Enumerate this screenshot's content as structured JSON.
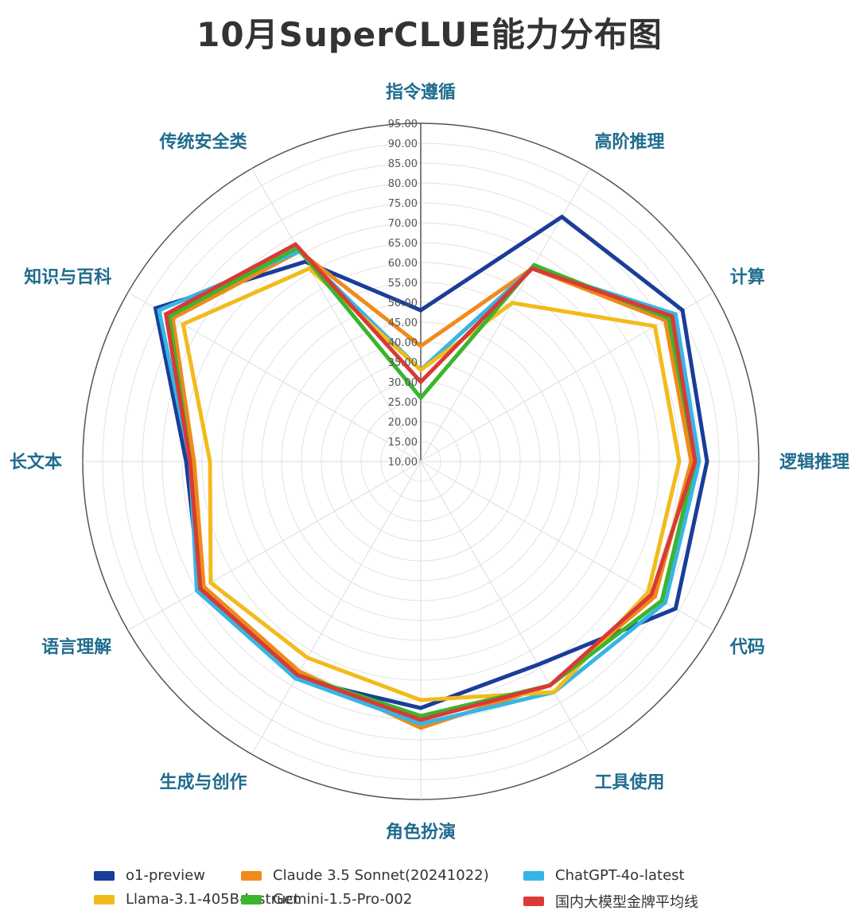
{
  "chart_data": {
    "type": "radar",
    "title": "10月SuperCLUE能力分布图",
    "axes": [
      "指令遵循",
      "高阶推理",
      "计算",
      "逻辑推理",
      "代码",
      "工具使用",
      "角色扮演",
      "生成与创作",
      "语言理解",
      "长文本",
      "知识与百科",
      "传统安全类"
    ],
    "rlim": [
      10,
      95
    ],
    "ticks": [
      "10.00",
      "15.00",
      "20.00",
      "25.00",
      "30.00",
      "35.00",
      "40.00",
      "45.00",
      "50.00",
      "55.00",
      "60.00",
      "65.00",
      "70.00",
      "75.00",
      "80.00",
      "85.00",
      "90.00",
      "95.00"
    ],
    "grid": true,
    "legend_position": "bottom",
    "series": [
      {
        "name": "o1-preview",
        "color": "#1a3d99",
        "values": [
          48,
          81,
          86,
          82,
          84,
          69,
          72,
          73,
          74,
          69,
          87,
          68
        ]
      },
      {
        "name": "Claude 3.5 Sonnet(20241022)",
        "color": "#f08a1a",
        "values": [
          39,
          66,
          81,
          78,
          78,
          75,
          77,
          71,
          73,
          67,
          82,
          71
        ]
      },
      {
        "name": "ChatGPT-4o-latest",
        "color": "#36b5e6",
        "values": [
          33,
          66,
          84,
          80,
          81,
          77,
          76,
          73,
          75,
          68,
          86,
          71
        ]
      },
      {
        "name": "Llama-3.1-405B-Instruct",
        "color": "#f2bb1c",
        "values": [
          33,
          56,
          78,
          75,
          76,
          77,
          70,
          67,
          71,
          63,
          79,
          66
        ]
      },
      {
        "name": "Gemini-1.5-Pro-002",
        "color": "#3bb52e",
        "values": [
          26,
          67,
          82,
          79,
          80,
          75,
          74,
          72,
          74,
          68,
          83,
          72
        ]
      },
      {
        "name": "国内大模型金牌平均线",
        "color": "#d93a36",
        "values": [
          30,
          66,
          83,
          79,
          77,
          75,
          75,
          72,
          74,
          68,
          84,
          73
        ]
      }
    ]
  }
}
